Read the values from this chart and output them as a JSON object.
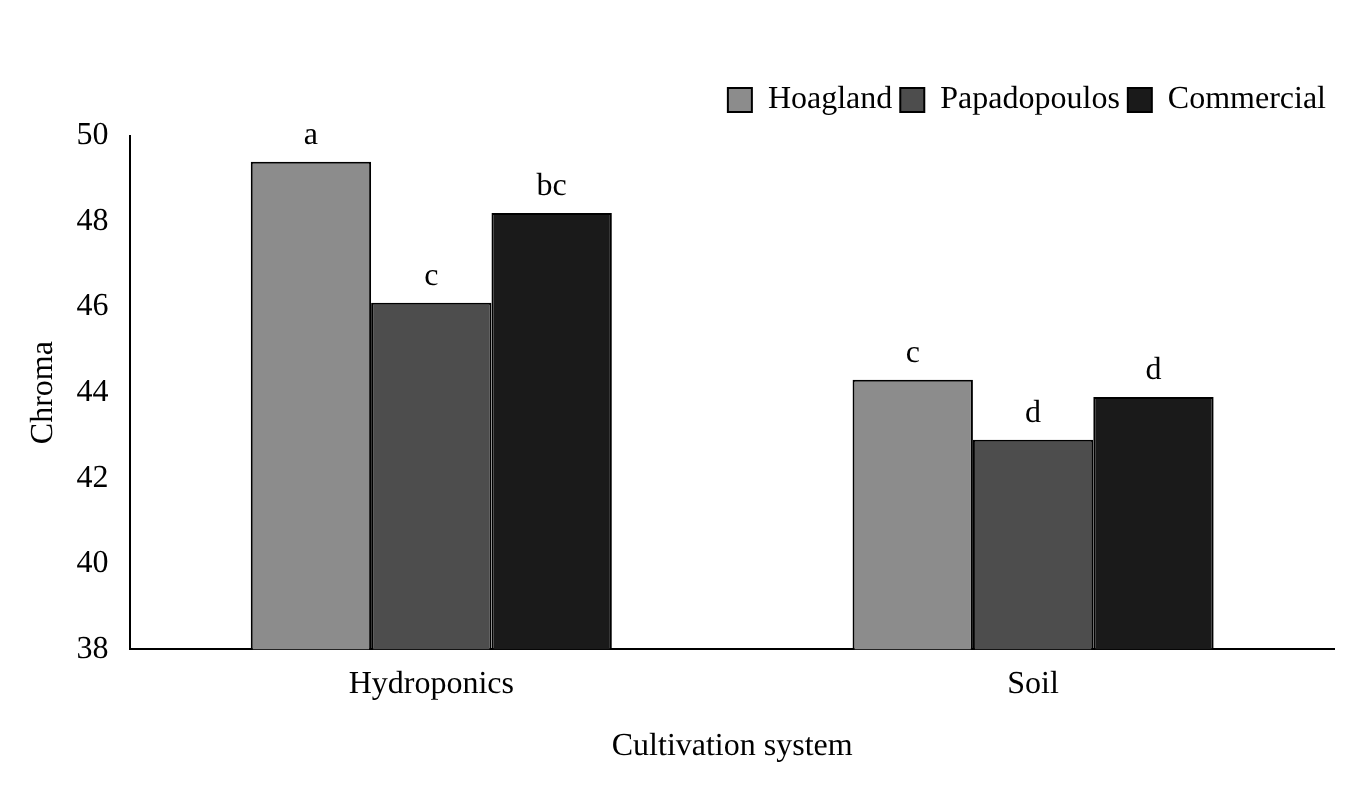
{
  "chart_data": {
    "type": "bar",
    "xlabel": "Cultivation system",
    "ylabel": "Chroma",
    "categories": [
      "Hydroponics",
      "Soil"
    ],
    "series": [
      {
        "name": "Hoagland",
        "color": "#8c8c8c",
        "values": [
          49.4,
          44.3
        ],
        "value_labels": [
          "a",
          "c"
        ]
      },
      {
        "name": "Papadopoulos",
        "color": "#4d4d4d",
        "values": [
          46.1,
          42.9
        ],
        "value_labels": [
          "c",
          "d"
        ]
      },
      {
        "name": "Commercial",
        "color": "#1a1a1a",
        "values": [
          48.2,
          43.9
        ],
        "value_labels": [
          "bc",
          "d"
        ]
      }
    ],
    "ylim": [
      38,
      50
    ],
    "yticks": [
      38,
      40,
      42,
      44,
      46,
      48,
      50
    ],
    "grid": false,
    "legend": "top right"
  }
}
